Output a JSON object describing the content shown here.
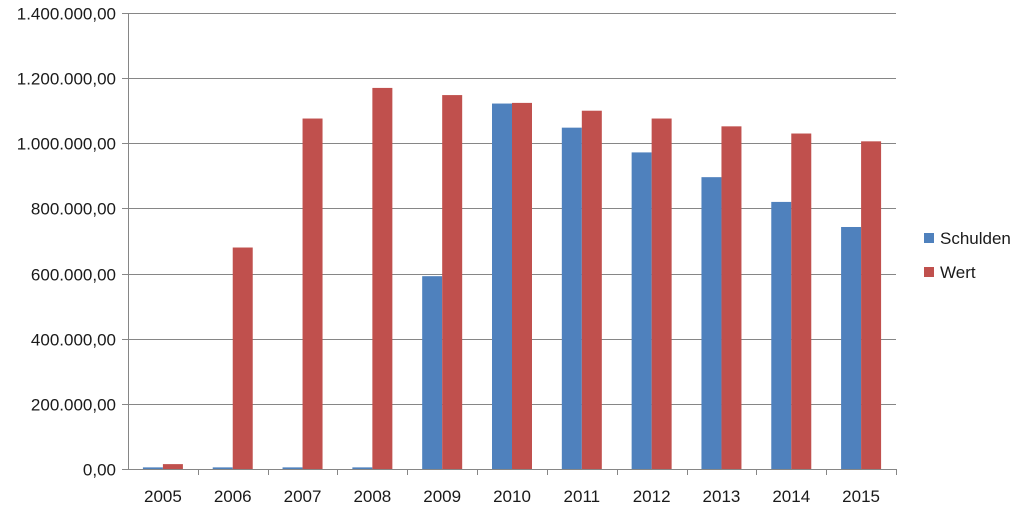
{
  "chart_data": {
    "type": "bar",
    "title": "",
    "xlabel": "",
    "ylabel": "",
    "categories": [
      "2005",
      "2006",
      "2007",
      "2008",
      "2009",
      "2010",
      "2011",
      "2012",
      "2013",
      "2014",
      "2015"
    ],
    "series": [
      {
        "name": "Schulden",
        "color": "#4F81BD",
        "values": [
          5000,
          5000,
          5000,
          5000,
          592000,
          1122000,
          1048000,
          972000,
          896000,
          820000,
          743000
        ]
      },
      {
        "name": "Wert",
        "color": "#C0504D",
        "values": [
          15000,
          680000,
          1076000,
          1170000,
          1148000,
          1124000,
          1100000,
          1076000,
          1052000,
          1030000,
          1006000
        ]
      }
    ],
    "ylim": [
      0,
      1400000
    ],
    "yticks": [
      0,
      200000,
      400000,
      600000,
      800000,
      1000000,
      1200000,
      1400000
    ],
    "ytick_labels": [
      "0,00",
      "200.000,00",
      "400.000,00",
      "600.000,00",
      "800.000,00",
      "1.000.000,00",
      "1.200.000,00",
      "1.400.000,00"
    ],
    "grid": true,
    "gridline_color": "#868686",
    "legend_position": "right"
  }
}
